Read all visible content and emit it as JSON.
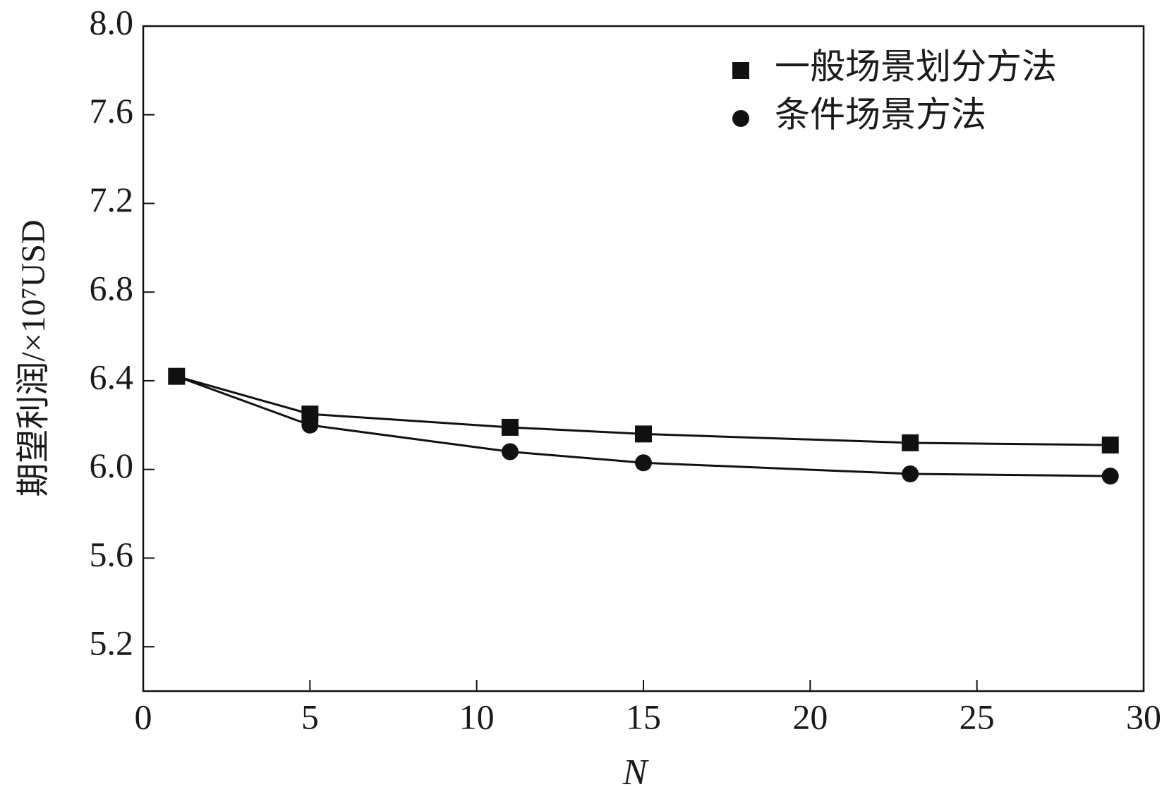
{
  "chart_data": {
    "type": "line",
    "x_label": "N",
    "y_label": "期望利润/×10⁷USD",
    "xlim": [
      0,
      30
    ],
    "xticks": [
      0,
      5,
      10,
      15,
      20,
      25,
      30
    ],
    "ylim": [
      5.0,
      8.0
    ],
    "yticks": [
      5.2,
      5.6,
      {
        "value": 6,
        "label": "6.0"
      },
      6.4,
      6.8,
      7.2,
      7.6,
      {
        "value": 8,
        "label": "8.0"
      }
    ],
    "legend": "upper right",
    "series": [
      {
        "name": "一般场景划分方法",
        "color": "#111111",
        "marker": "square",
        "x": [
          1,
          5,
          11,
          15,
          23,
          29
        ],
        "values": [
          6.42,
          6.25,
          6.19,
          6.16,
          6.12,
          6.11
        ]
      },
      {
        "name": "条件场景方法",
        "color": "#111111",
        "marker": "circle",
        "x": [
          1,
          5,
          11,
          15,
          23,
          29
        ],
        "values": [
          6.42,
          6.2,
          6.08,
          6.03,
          5.98,
          5.97
        ]
      }
    ]
  }
}
